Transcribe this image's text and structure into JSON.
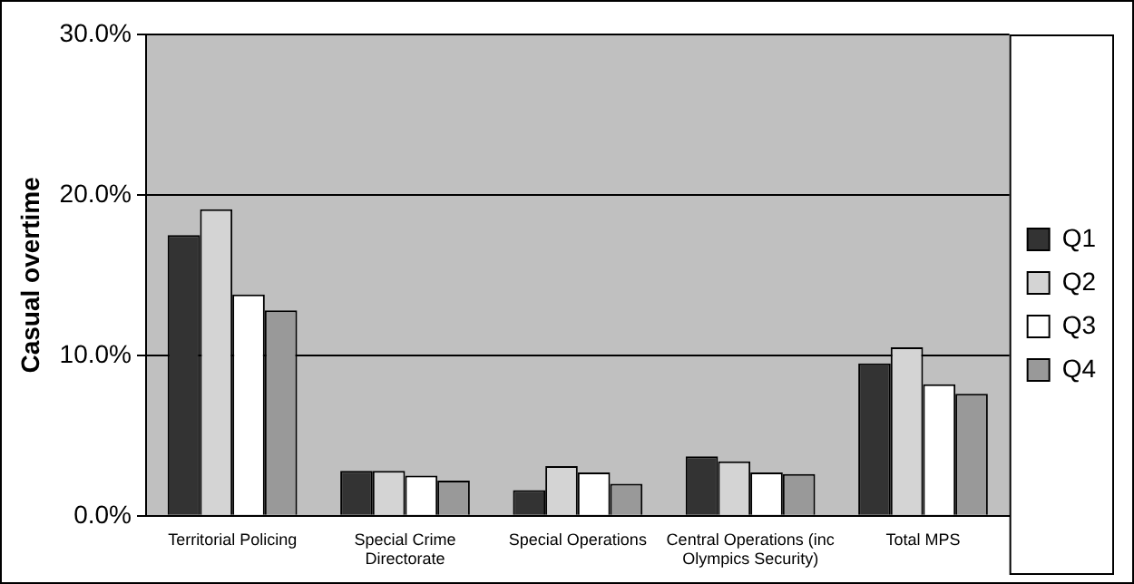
{
  "chart_data": {
    "type": "bar",
    "ylabel": "Casual overtime",
    "categories": [
      "Territorial Policing",
      "Special Crime Directorate",
      "Special Operations",
      "Central Operations (inc Olympics Security)",
      "Total MPS"
    ],
    "series": [
      {
        "name": "Q1",
        "color": "#333333",
        "values": [
          17.5,
          2.8,
          1.6,
          3.7,
          9.5
        ]
      },
      {
        "name": "Q2",
        "color": "#d4d4d4",
        "values": [
          19.1,
          2.8,
          3.1,
          3.4,
          10.5
        ]
      },
      {
        "name": "Q3",
        "color": "#ffffff",
        "values": [
          13.8,
          2.5,
          2.7,
          2.7,
          8.2
        ]
      },
      {
        "name": "Q4",
        "color": "#999999",
        "values": [
          12.8,
          2.2,
          2.0,
          2.6,
          7.6
        ]
      }
    ],
    "ylim": [
      0,
      30
    ],
    "yticks": [
      {
        "value": 0,
        "label": "0.0%"
      },
      {
        "value": 10,
        "label": "10.0%"
      },
      {
        "value": 20,
        "label": "20.0%"
      },
      {
        "value": 30,
        "label": "30.0%"
      }
    ],
    "grid": "y",
    "legend": "right"
  }
}
